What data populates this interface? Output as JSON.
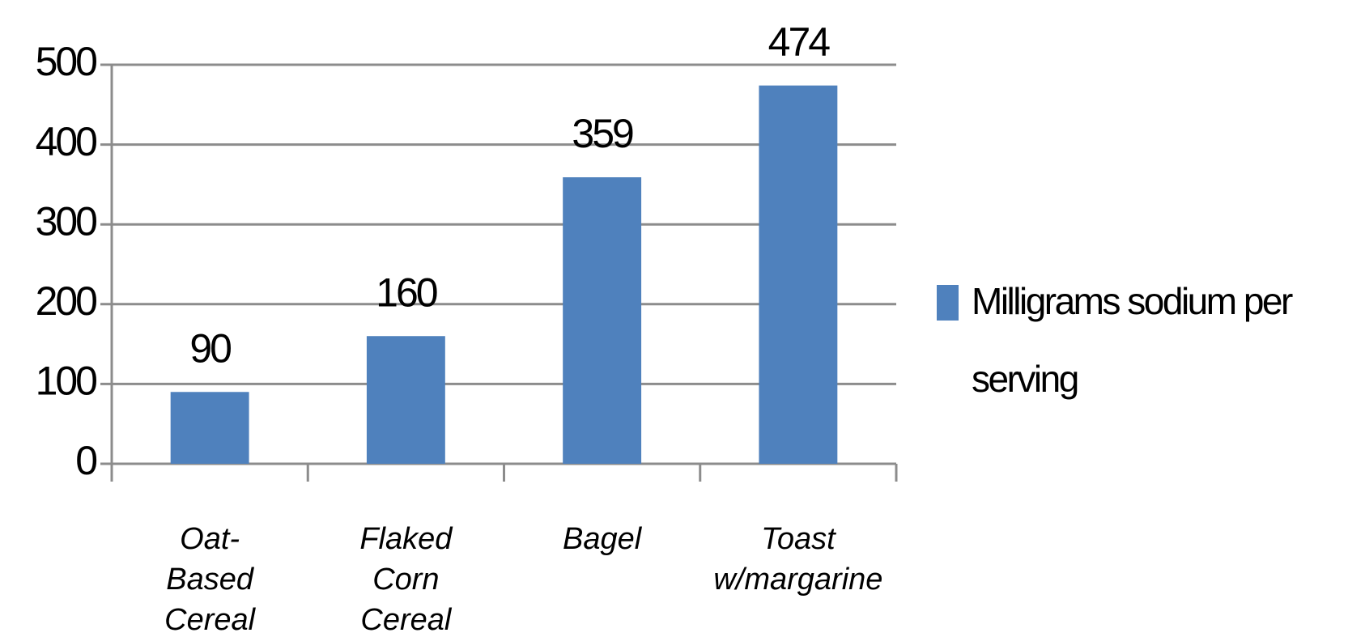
{
  "chart_data": {
    "type": "bar",
    "categories": [
      "Oat-Based Cereal",
      "Flaked Corn Cereal",
      "Bagel",
      "Toast w/margarine"
    ],
    "series": [
      {
        "name": "Milligrams sodium per serving",
        "color": "#4f81bd",
        "values": [
          90,
          160,
          359,
          474
        ]
      }
    ],
    "ylim": [
      0,
      500
    ],
    "yticks": [
      0,
      100,
      200,
      300,
      400,
      500
    ],
    "grid": true,
    "legend": "right"
  }
}
